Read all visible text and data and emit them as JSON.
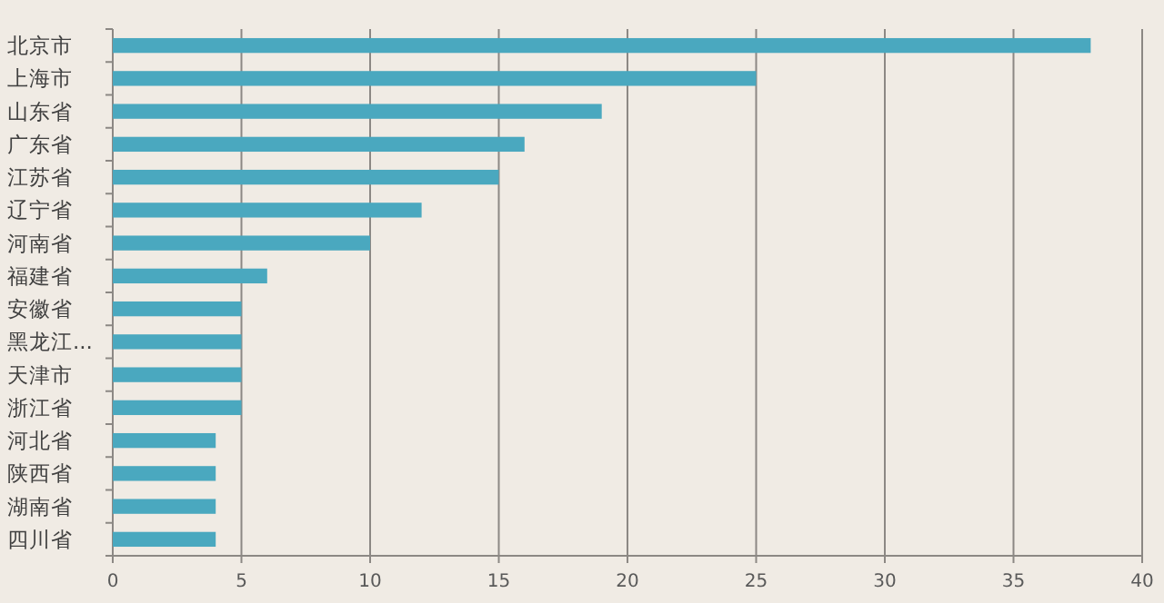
{
  "chart_data": {
    "type": "bar",
    "orientation": "horizontal",
    "categories": [
      "北京市",
      "上海市",
      "山东省",
      "广东省",
      "江苏省",
      "辽宁省",
      "河南省",
      "福建省",
      "安徽省",
      "黑龙江...",
      "天津市",
      "浙江省",
      "河北省",
      "陕西省",
      "湖南省",
      "四川省"
    ],
    "values": [
      38,
      25,
      19,
      16,
      15,
      12,
      10,
      6,
      5,
      5,
      5,
      5,
      4,
      4,
      4,
      4
    ],
    "color": "#4aa8bf",
    "xlim": [
      0,
      40
    ],
    "xticks": [
      0,
      5,
      10,
      15,
      20,
      25,
      30,
      35,
      40
    ],
    "grid": "x"
  }
}
